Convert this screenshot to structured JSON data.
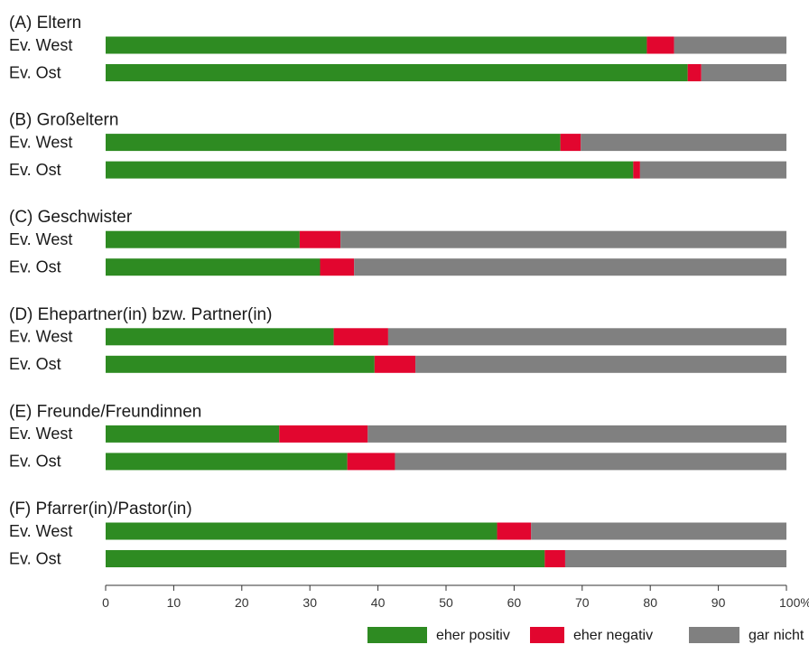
{
  "chart_data": {
    "type": "bar",
    "orientation": "horizontal",
    "stacked": true,
    "xlim": [
      0,
      100
    ],
    "x_ticks": [
      "0",
      "10",
      "20",
      "30",
      "40",
      "50",
      "60",
      "70",
      "80",
      "90",
      "100%"
    ],
    "series": [
      {
        "name": "eher positiv",
        "color": "#2e8b22"
      },
      {
        "name": "eher negativ",
        "color": "#e2062f"
      },
      {
        "name": "gar nicht",
        "color": "#808080"
      }
    ],
    "groups": [
      {
        "title": "(A)  Eltern",
        "rows": [
          {
            "label": "Ev. West",
            "values": [
              79.5,
              4,
              16.5
            ]
          },
          {
            "label": "Ev. Ost",
            "values": [
              85.5,
              2,
              12.5
            ]
          }
        ]
      },
      {
        "title": "(B)  Großeltern",
        "rows": [
          {
            "label": "Ev. West",
            "values": [
              66.8,
              3,
              30.2
            ]
          },
          {
            "label": "Ev. Ost",
            "values": [
              77.5,
              1,
              21.5
            ]
          }
        ]
      },
      {
        "title": "(C)  Geschwister",
        "rows": [
          {
            "label": "Ev. West",
            "values": [
              28.5,
              6,
              65.5
            ]
          },
          {
            "label": "Ev. Ost",
            "values": [
              31.5,
              5,
              63.5
            ]
          }
        ]
      },
      {
        "title": "(D)  Ehepartner(in) bzw. Partner(in)",
        "rows": [
          {
            "label": "Ev. West",
            "values": [
              33.5,
              8,
              58.5
            ]
          },
          {
            "label": "Ev. Ost",
            "values": [
              39.5,
              6,
              54.5
            ]
          }
        ]
      },
      {
        "title": "(E)  Freunde/Freundinnen",
        "rows": [
          {
            "label": "Ev. West",
            "values": [
              25.5,
              13,
              61.5
            ]
          },
          {
            "label": "Ev. Ost",
            "values": [
              35.5,
              7,
              57.5
            ]
          }
        ]
      },
      {
        "title": "(F)  Pfarrer(in)/Pastor(in)",
        "rows": [
          {
            "label": "Ev. West",
            "values": [
              57.5,
              5,
              37.5
            ]
          },
          {
            "label": "Ev. Ost",
            "values": [
              64.5,
              3,
              32.5
            ]
          }
        ]
      }
    ],
    "legend_position": "bottom-right",
    "grid": false
  }
}
